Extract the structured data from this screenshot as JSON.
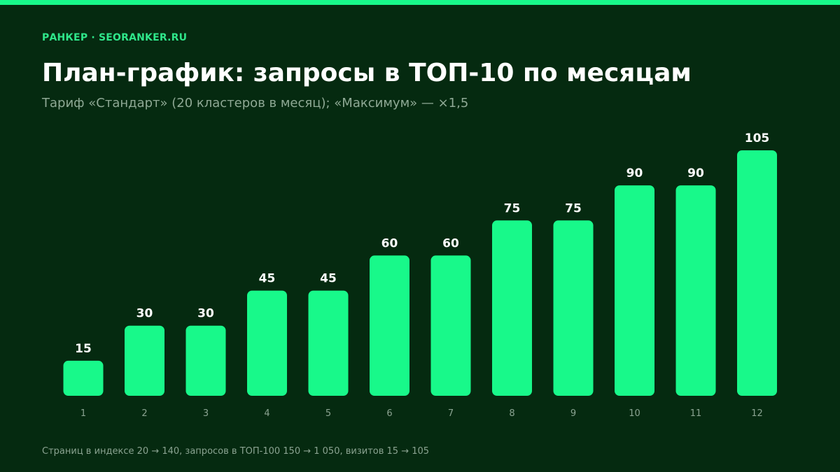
{
  "brand": "РАНКЕР · SEORANKER.RU",
  "colors": {
    "background": "#052a10",
    "accent": "#18f98a",
    "brand_text": "#2fe68a",
    "subtitle_text": "#8fa995",
    "tick_text": "#8aa391",
    "footnote_text": "#8aa391",
    "bar_label": "#ffffff"
  },
  "chart_data": {
    "type": "bar",
    "title": "План-график: запросы в ТОП-10 по месяцам",
    "subtitle": "Тариф «Стандарт» (20 кластеров в месяц); «Максимум» — ×1,5",
    "categories": [
      "1",
      "2",
      "3",
      "4",
      "5",
      "6",
      "7",
      "8",
      "9",
      "10",
      "11",
      "12"
    ],
    "values": [
      15,
      30,
      30,
      45,
      45,
      60,
      60,
      75,
      75,
      90,
      90,
      105
    ],
    "data_labels": [
      "15",
      "30",
      "30",
      "45",
      "45",
      "60",
      "60",
      "75",
      "75",
      "90",
      "90",
      "105"
    ],
    "ylim": [
      0,
      105
    ],
    "grid": false,
    "legend": "none"
  },
  "footnote": "Страниц в индексе 20 → 140, запросов в ТОП-100 150 → 1 050, визитов 15 → 105"
}
